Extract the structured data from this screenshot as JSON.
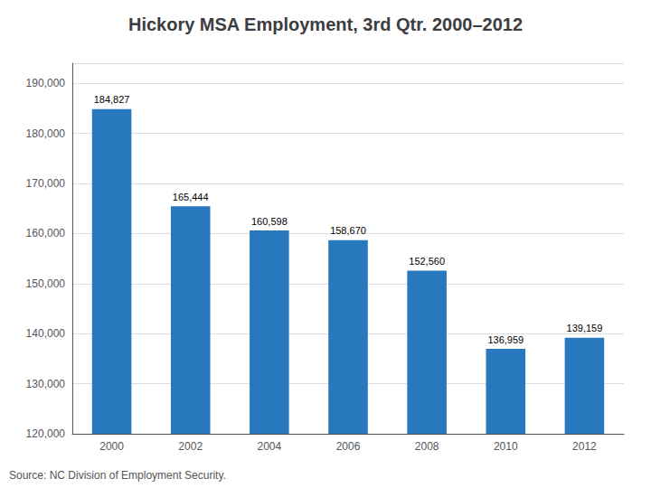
{
  "chart_data": {
    "type": "bar",
    "title": "Hickory MSA Employment, 3rd Qtr. 2000–2012",
    "categories": [
      "2000",
      "2002",
      "2004",
      "2006",
      "2008",
      "2010",
      "2012"
    ],
    "values": [
      184827,
      165444,
      160598,
      158670,
      152560,
      136959,
      139159
    ],
    "color": "#2878BE",
    "ylim": [
      120000,
      194000
    ],
    "yticks": [
      {
        "value": 120000,
        "label": "120,000"
      },
      {
        "value": 130000,
        "label": "130,000"
      },
      {
        "value": 140000,
        "label": "140,000"
      },
      {
        "value": 150000,
        "label": "150,000"
      },
      {
        "value": 160000,
        "label": "160,000"
      },
      {
        "value": 170000,
        "label": "170,000"
      },
      {
        "value": 180000,
        "label": "180,000"
      },
      {
        "value": 190000,
        "label": "190,000"
      }
    ],
    "grid": true,
    "data_labels": true,
    "value_labels": [
      "184,827",
      "165,444",
      "160,598",
      "158,670",
      "152,560",
      "136,959",
      "139,159"
    ],
    "annotations": [
      "Source: NC Division of Employment Security."
    ]
  }
}
